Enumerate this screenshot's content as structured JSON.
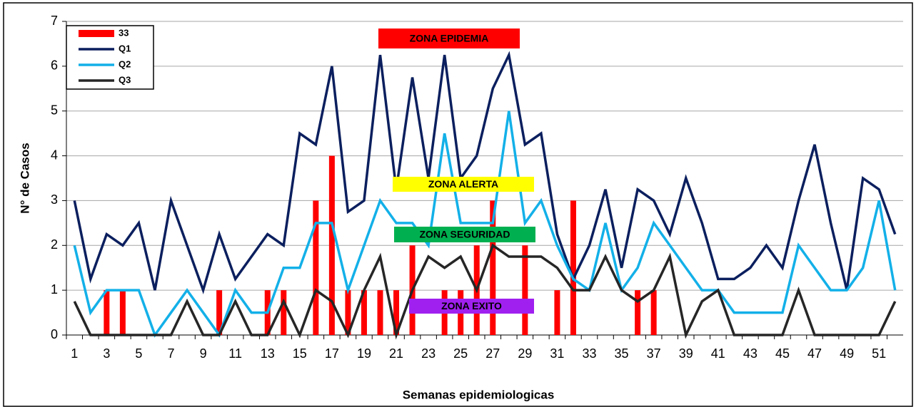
{
  "chart_data": {
    "type": "bar+line",
    "y_label": "N° de Casos",
    "x_label": "Semanas epidemiologicas",
    "categories": [
      1,
      null,
      3,
      null,
      5,
      null,
      7,
      null,
      9,
      null,
      11,
      null,
      13,
      null,
      15,
      null,
      17,
      null,
      19,
      null,
      21,
      null,
      23,
      null,
      25,
      null,
      27,
      null,
      29,
      null,
      31,
      null,
      33,
      null,
      35,
      null,
      37,
      null,
      39,
      null,
      41,
      null,
      43,
      null,
      45,
      null,
      47,
      null,
      49,
      null,
      51,
      null
    ],
    "series": [
      {
        "name": "33",
        "type": "bar",
        "color": "#ff0000",
        "values": [
          0,
          0,
          1,
          1,
          0,
          0,
          0,
          0,
          0,
          1,
          0,
          0,
          1,
          1,
          0,
          3,
          4,
          1,
          1,
          1,
          1,
          2,
          0,
          1,
          1,
          2,
          3,
          0,
          2,
          0,
          1,
          3,
          0,
          0,
          0,
          1,
          1,
          0,
          0,
          0,
          0,
          0,
          0,
          0,
          0,
          0,
          0,
          0,
          0,
          0,
          0,
          0
        ]
      },
      {
        "name": "Q1",
        "type": "line",
        "color": "#0b1f5e",
        "values": [
          3,
          1.25,
          2.25,
          2,
          2.5,
          1,
          3,
          2,
          1,
          2.25,
          1.25,
          1.75,
          2.25,
          2,
          4.5,
          4.25,
          6,
          2.75,
          3,
          6.25,
          3.25,
          5.75,
          3.5,
          6.25,
          3.5,
          4,
          5.5,
          6.25,
          4.25,
          4.5,
          2.25,
          1.25,
          2,
          3.25,
          1.5,
          3.25,
          3,
          2.25,
          3.5,
          2.5,
          1.25,
          1.25,
          1.5,
          2,
          1.5,
          3,
          4.25,
          2.5,
          1,
          3.5,
          3.25,
          2.25
        ]
      },
      {
        "name": "Q2",
        "type": "line",
        "color": "#13b0e8",
        "values": [
          2,
          0.5,
          1,
          1,
          1,
          0,
          0.5,
          1,
          0.5,
          0,
          1,
          0.5,
          0.5,
          1.5,
          1.5,
          2.5,
          2.5,
          1,
          2,
          3,
          2.5,
          2.5,
          2,
          4.5,
          2.5,
          2.5,
          2.5,
          5,
          2.5,
          3,
          2,
          1.25,
          1,
          2.5,
          1,
          1.5,
          2.5,
          2,
          1.5,
          1,
          1,
          0.5,
          0.5,
          0.5,
          0.5,
          2,
          1.5,
          1,
          1,
          1.5,
          3,
          1
        ]
      },
      {
        "name": "Q3",
        "type": "line",
        "color": "#262626",
        "values": [
          0.75,
          0,
          0,
          0,
          0,
          0,
          0,
          0.75,
          0,
          0,
          0.75,
          0,
          0,
          0.75,
          0,
          1,
          0.75,
          0,
          1,
          1.75,
          0,
          1,
          1.75,
          1.5,
          1.75,
          1,
          2,
          1.75,
          1.75,
          1.75,
          1.5,
          1,
          1,
          1.75,
          1,
          0.75,
          1,
          1.75,
          0,
          0.75,
          1,
          0,
          0,
          0,
          0,
          1,
          0,
          0,
          0,
          0,
          0,
          0.75
        ]
      }
    ],
    "annotations": [
      {
        "text": "ZONA  EPIDEMIA",
        "color": "#ff0000"
      },
      {
        "text": "ZONA  ALERTA",
        "color": "#ffff00"
      },
      {
        "text": "ZONA  SEGURIDAD",
        "color": "#00b050"
      },
      {
        "text": "ZONA  EXITO",
        "color": "#a020f0"
      }
    ],
    "ylim": [
      0,
      7
    ],
    "yticks": [
      0,
      1,
      2,
      3,
      4,
      5,
      6,
      7
    ],
    "grid": true,
    "legend": "upper left"
  }
}
